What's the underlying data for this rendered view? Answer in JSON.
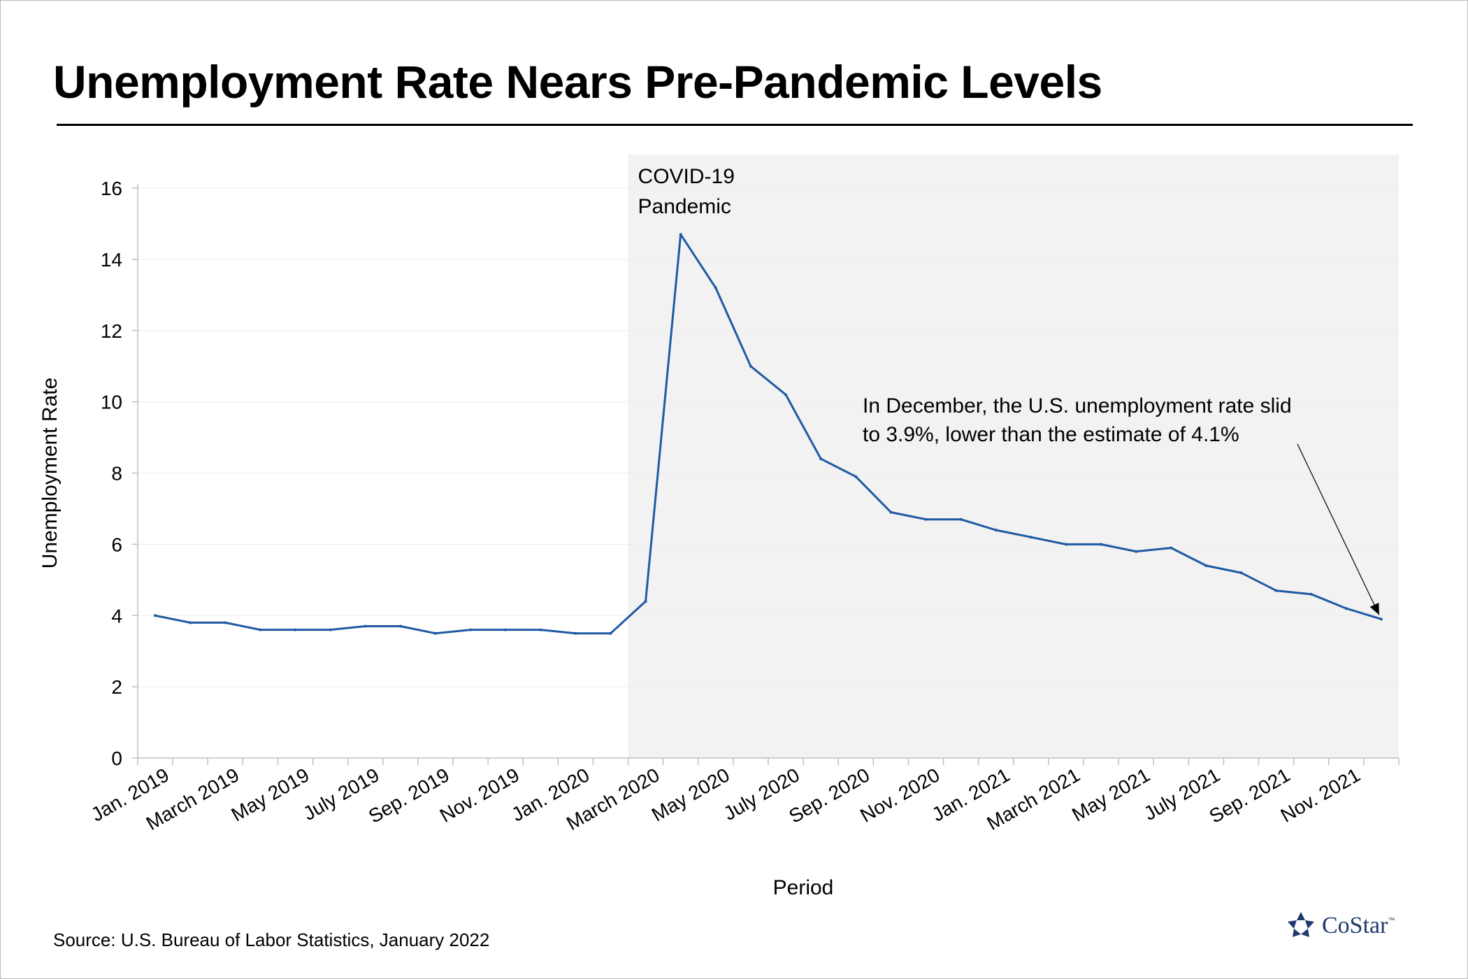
{
  "title": "Unemployment Rate Nears Pre-Pandemic Levels",
  "source": "Source: U.S. Bureau of Labor Statistics, January 2022",
  "brand": {
    "name": "CoStar",
    "trademark": "™",
    "icon": "costar-star-icon",
    "color": "#1f3a6d"
  },
  "chart_data": {
    "type": "line",
    "xlabel": "Period",
    "ylabel": "Unemployment Rate",
    "ylim": [
      0,
      16
    ],
    "yticks": [
      0,
      2,
      4,
      6,
      8,
      10,
      12,
      14,
      16
    ],
    "grid": true,
    "line_color": "#1f5aa3",
    "x": [
      "Jan. 2019",
      "Feb. 2019",
      "March 2019",
      "Apr. 2019",
      "May 2019",
      "June 2019",
      "July 2019",
      "Aug. 2019",
      "Sep. 2019",
      "Oct. 2019",
      "Nov. 2019",
      "Dec. 2019",
      "Jan. 2020",
      "Feb. 2020",
      "March 2020",
      "Apr. 2020",
      "May 2020",
      "June 2020",
      "July 2020",
      "Aug. 2020",
      "Sep. 2020",
      "Oct. 2020",
      "Nov. 2020",
      "Dec. 2020",
      "Jan. 2021",
      "Feb. 2021",
      "March 2021",
      "Apr. 2021",
      "May 2021",
      "June 2021",
      "July 2021",
      "Aug. 2021",
      "Sep. 2021",
      "Oct. 2021",
      "Nov. 2021",
      "Dec. 2021"
    ],
    "x_tick_labels": [
      "Jan. 2019",
      "March 2019",
      "May 2019",
      "July 2019",
      "Sep. 2019",
      "Nov. 2019",
      "Jan. 2020",
      "March 2020",
      "May 2020",
      "July 2020",
      "Sep. 2020",
      "Nov. 2020",
      "Jan. 2021",
      "March 2021",
      "May 2021",
      "July 2021",
      "Sep. 2021",
      "Nov. 2021"
    ],
    "values": [
      4.0,
      3.8,
      3.8,
      3.6,
      3.6,
      3.6,
      3.7,
      3.7,
      3.5,
      3.6,
      3.6,
      3.6,
      3.5,
      3.5,
      4.4,
      14.7,
      13.2,
      11.0,
      10.2,
      8.4,
      7.9,
      6.9,
      6.7,
      6.7,
      6.4,
      6.2,
      6.0,
      6.0,
      5.8,
      5.9,
      5.4,
      5.2,
      4.7,
      4.6,
      4.2,
      3.9
    ],
    "shaded_region": {
      "start": "March 2020",
      "end": "Dec. 2021",
      "label_lines": [
        "COVID-19",
        "Pandemic"
      ],
      "color": "#f2f2f2"
    },
    "annotation": {
      "text_lines": [
        "In December, the U.S. unemployment rate slid",
        "to 3.9%, lower than the estimate of 4.1%"
      ],
      "target": "Dec. 2021"
    }
  }
}
